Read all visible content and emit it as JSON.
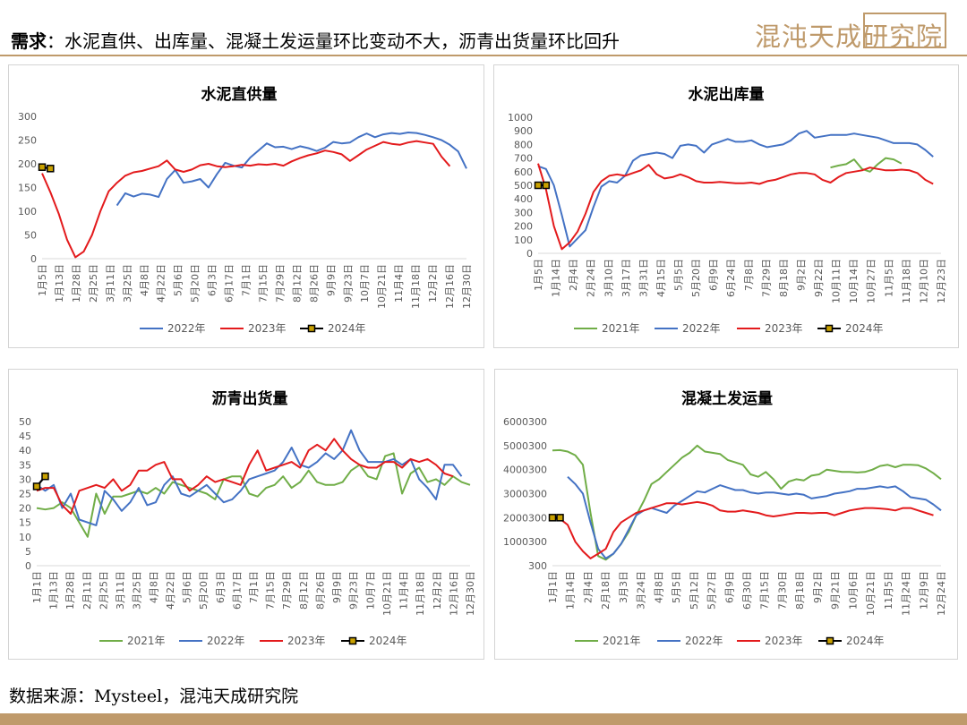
{
  "header": {
    "label": "需求",
    "text": "：水泥直供、出库量、混凝土发运量环比变动不大，沥青出货量环比回升",
    "brand": "混沌天成研究院"
  },
  "source": "数据来源：Mysteel，混沌天成研究院",
  "colors": {
    "2021年": "#70ad47",
    "2022年": "#4472c4",
    "2023年": "#e31a1c",
    "2024年": "#000000",
    "accent": "#bf9a6b"
  },
  "chart_data": [
    {
      "id": "cement-direct",
      "type": "line",
      "title": "水泥直供量",
      "ylim": [
        0,
        300
      ],
      "yticks": [
        "0",
        "50",
        "100",
        "150",
        "200",
        "250",
        "300"
      ],
      "x_count": 52,
      "xtick_labels": [
        "1月5日",
        "1月13日",
        "1月28日",
        "2月25日",
        "3月11日",
        "3月25日",
        "4月8日",
        "4月22日",
        "5月6日",
        "5月20日",
        "6月3日",
        "6月17日",
        "7月1日",
        "7月15日",
        "7月29日",
        "8月12日",
        "8月26日",
        "9月9日",
        "9月23日",
        "10月7日",
        "10月21日",
        "11月4日",
        "11月18日",
        "12月2日",
        "12月16日",
        "12月30日"
      ],
      "series": [
        {
          "name": "2022年",
          "start": 9,
          "values": [
            112,
            138,
            131,
            137,
            135,
            130,
            168,
            187,
            160,
            163,
            168,
            150,
            178,
            202,
            196,
            192,
            213,
            228,
            243,
            235,
            236,
            231,
            237,
            233,
            227,
            234,
            246,
            243,
            245,
            256,
            264,
            256,
            262,
            265,
            263,
            266,
            265,
            261,
            256,
            250,
            240,
            226,
            190
          ]
        },
        {
          "name": "2023年",
          "start": 0,
          "values": [
            180,
            140,
            95,
            40,
            3,
            15,
            50,
            100,
            142,
            160,
            175,
            182,
            185,
            190,
            195,
            207,
            188,
            183,
            188,
            197,
            200,
            195,
            193,
            195,
            198,
            196,
            199,
            198,
            200,
            196,
            205,
            212,
            218,
            222,
            228,
            225,
            220,
            206,
            218,
            230,
            238,
            246,
            242,
            240,
            245,
            248,
            245,
            242,
            215,
            195
          ]
        },
        {
          "name": "2024年",
          "start": 0,
          "values": [
            193,
            190
          ]
        }
      ]
    },
    {
      "id": "cement-outbound",
      "type": "line",
      "title": "水泥出库量",
      "ylim": [
        0,
        1000
      ],
      "yticks": [
        "0",
        "100",
        "200",
        "300",
        "400",
        "500",
        "600",
        "700",
        "800",
        "900",
        "1000"
      ],
      "x_count": 52,
      "xtick_labels": [
        "1月5日",
        "1月14日",
        "2月4日",
        "2月24日",
        "3月10日",
        "3月17日",
        "3月31日",
        "4月15日",
        "5月5日",
        "5月20日",
        "6月9日",
        "6月24日",
        "7月8日",
        "7月29日",
        "8月18日",
        "9月2日",
        "9月22日",
        "10月11日",
        "10月14日",
        "10月27日",
        "11月5日",
        "11月18日",
        "12月10日",
        "12月23日"
      ],
      "series": [
        {
          "name": "2021年",
          "start": 37,
          "values": [
            630,
            645,
            655,
            690,
            620,
            600,
            655,
            700,
            690,
            660
          ]
        },
        {
          "name": "2022年",
          "start": 0,
          "values": [
            640,
            620,
            500,
            280,
            50,
            110,
            170,
            340,
            490,
            530,
            520,
            570,
            680,
            720,
            730,
            740,
            730,
            700,
            790,
            800,
            790,
            740,
            800,
            820,
            840,
            820,
            820,
            830,
            800,
            780,
            790,
            800,
            830,
            880,
            900,
            850,
            860,
            870,
            870,
            870,
            880,
            870,
            860,
            850,
            830,
            810,
            810,
            810,
            800,
            760,
            710
          ]
        },
        {
          "name": "2023年",
          "start": 0,
          "values": [
            660,
            470,
            200,
            30,
            80,
            160,
            290,
            450,
            530,
            570,
            580,
            570,
            590,
            610,
            650,
            580,
            550,
            560,
            580,
            560,
            530,
            520,
            520,
            525,
            520,
            515,
            515,
            520,
            510,
            530,
            540,
            560,
            580,
            590,
            590,
            580,
            540,
            520,
            560,
            590,
            600,
            610,
            630,
            620,
            610,
            610,
            615,
            610,
            590,
            540,
            510
          ]
        },
        {
          "name": "2024年",
          "start": 0,
          "values": [
            500,
            500
          ]
        }
      ]
    },
    {
      "id": "asphalt-shipments",
      "type": "line",
      "title": "沥青出货量",
      "ylim": [
        0,
        50
      ],
      "yticks": [
        "0",
        "5",
        "10",
        "15",
        "20",
        "25",
        "30",
        "35",
        "40",
        "45",
        "50"
      ],
      "x_count": 52,
      "xtick_labels": [
        "1月1日",
        "1月13日",
        "1月28日",
        "2月11日",
        "2月25日",
        "3月11日",
        "3月25日",
        "4月8日",
        "4月22日",
        "5月6日",
        "5月20日",
        "6月3日",
        "6月17日",
        "7月1日",
        "7月15日",
        "7月29日",
        "8月12日",
        "8月26日",
        "9月9日",
        "9月23日",
        "10月7日",
        "10月21日",
        "11月4日",
        "11月18日",
        "12月2日",
        "12月16日",
        "12月30日"
      ],
      "series": [
        {
          "name": "2021年",
          "start": 0,
          "values": [
            20,
            19.5,
            20,
            22,
            20,
            15,
            10,
            25,
            18,
            24,
            24,
            25,
            26,
            25,
            27,
            25,
            29,
            28,
            27,
            26,
            25,
            23,
            30,
            31,
            31,
            25,
            24,
            27,
            28,
            31,
            27,
            29,
            33,
            29,
            28,
            28,
            29,
            33,
            35,
            31,
            30,
            38,
            39,
            25,
            32,
            34,
            29,
            30,
            28,
            31,
            29,
            28
          ]
        },
        {
          "name": "2022年",
          "start": 0,
          "values": [
            28,
            26,
            28,
            20,
            25,
            16,
            15,
            14,
            26,
            23,
            19,
            22,
            27,
            21,
            22,
            28,
            31,
            25,
            24,
            26,
            28,
            25,
            22,
            23,
            26,
            30,
            31,
            32,
            33,
            36,
            41,
            35,
            34,
            36,
            39,
            37,
            40,
            47,
            40,
            36,
            36,
            36,
            37,
            35,
            37,
            30,
            27,
            23,
            35,
            35,
            31
          ]
        },
        {
          "name": "2023年",
          "start": 0,
          "values": [
            26,
            27,
            27,
            21,
            18,
            26,
            27,
            28,
            27,
            30,
            26,
            28,
            33,
            33,
            35,
            36,
            30,
            30,
            26,
            28,
            31,
            29,
            30,
            29,
            28,
            35,
            40,
            33,
            34,
            35,
            36,
            34,
            40,
            42,
            40,
            44,
            40,
            37,
            35,
            34,
            34,
            36,
            36,
            34,
            37,
            36,
            37,
            35,
            32,
            31
          ]
        },
        {
          "name": "2024年",
          "start": 0,
          "values": [
            27.5,
            31
          ]
        }
      ]
    },
    {
      "id": "concrete-shipments",
      "type": "line",
      "title": "混凝土发运量",
      "ylim": [
        300,
        6000300
      ],
      "yticks": [
        "300",
        "1000300",
        "2000300",
        "3000300",
        "4000300",
        "5000300",
        "6000300"
      ],
      "x_count": 52,
      "xtick_labels": [
        "1月1日",
        "1月14日",
        "2月4日",
        "2月18日",
        "3月3日",
        "3月24日",
        "4月8日",
        "5月5日",
        "5月12日",
        "5月27日",
        "6月9日",
        "6月30日",
        "7月15日",
        "7月30日",
        "8月18日",
        "9月2日",
        "9月21日",
        "10月6日",
        "10月21日",
        "11月5日",
        "11月24日",
        "12月9日",
        "12月24日"
      ],
      "series": [
        {
          "name": "2021年",
          "start": 0,
          "values": [
            4800300,
            4810300,
            4750300,
            4600300,
            4200300,
            2200300,
            400300,
            250300,
            500300,
            900300,
            1400300,
            2100300,
            2700300,
            3400300,
            3600300,
            3900300,
            4200300,
            4500300,
            4700300,
            5000300,
            4750300,
            4700300,
            4650300,
            4400300,
            4300300,
            4200300,
            3800300,
            3700300,
            3900300,
            3600300,
            3200300,
            3500300,
            3600300,
            3550300,
            3750300,
            3800300,
            4000300,
            3950300,
            3900300,
            3900300,
            3880300,
            3900300,
            4000300,
            4150300,
            4200300,
            4100300,
            4200300,
            4200300,
            4180300,
            4050300,
            3850300,
            3600300
          ]
        },
        {
          "name": "2022年",
          "start": 2,
          "values": [
            3700300,
            3400300,
            3000300,
            1800300,
            700300,
            300300,
            500300,
            900300,
            1500300,
            2100300,
            2300300,
            2400300,
            2300300,
            2200300,
            2500300,
            2700300,
            2900300,
            3100300,
            3050300,
            3200300,
            3350300,
            3250300,
            3150300,
            3150300,
            3050300,
            3000300,
            3050300,
            3050300,
            3000300,
            2950300,
            3000300,
            2950300,
            2800300,
            2850300,
            2900300,
            3000300,
            3050300,
            3100300,
            3200300,
            3200300,
            3250300,
            3300300,
            3250300,
            3300300,
            3100300,
            2850300,
            2800300,
            2750300,
            2550300,
            2300300
          ]
        },
        {
          "name": "2023年",
          "start": 0,
          "values": [
            2000300,
            1950300,
            1700300,
            1000300,
            600300,
            300300,
            500300,
            700300,
            1400300,
            1800300,
            2000300,
            2200300,
            2300300,
            2400300,
            2500300,
            2600300,
            2600300,
            2550300,
            2600300,
            2650300,
            2600300,
            2500300,
            2300300,
            2250300,
            2250300,
            2300300,
            2250300,
            2200300,
            2100300,
            2050300,
            2100300,
            2150300,
            2200300,
            2200300,
            2180300,
            2200300,
            2200300,
            2100300,
            2200300,
            2300300,
            2350300,
            2400300,
            2400300,
            2380300,
            2350300,
            2300300,
            2400300,
            2400300,
            2300300,
            2200300,
            2100300
          ]
        },
        {
          "name": "2024年",
          "start": 0,
          "values": [
            2000300,
            2000300
          ]
        }
      ]
    }
  ]
}
